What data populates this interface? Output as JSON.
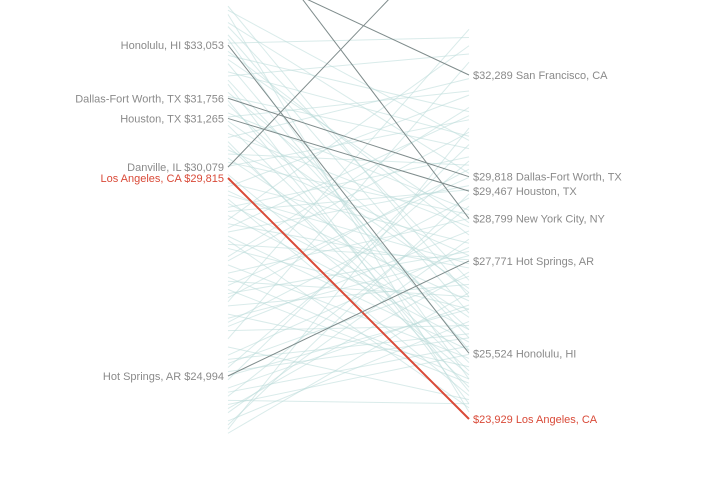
{
  "chart_data": {
    "type": "slope",
    "colors": {
      "highlight": "#d94a38",
      "labeled_line": "#7f8c8c",
      "background_line": "#b9dad8",
      "label_text": "#8a8a8a"
    },
    "left_axis": {
      "domain": [
        23000,
        34000
      ]
    },
    "right_axis": {
      "domain": [
        23000,
        34000
      ]
    },
    "labeled_series": [
      {
        "name": "Honolulu, HI",
        "left_value": 33053,
        "left_text": "Honolulu, HI  $33,053",
        "right_value": 25524,
        "right_text": "$25,524 Honolulu, HI",
        "highlight": false
      },
      {
        "name": "Dallas-Fort Worth, TX",
        "left_value": 31756,
        "left_text": "Dallas-Fort Worth, TX  $31,756",
        "right_value": 29818,
        "right_text": "$29,818 Dallas-Fort Worth, TX",
        "highlight": false
      },
      {
        "name": "Houston, TX",
        "left_value": 31265,
        "left_text": "Houston, TX  $31,265",
        "right_value": 29467,
        "right_text": "$29,467 Houston, TX",
        "highlight": false
      },
      {
        "name": "Danville, IL",
        "left_value": 30079,
        "left_text": "Danville, IL  $30,079",
        "highlight": false
      },
      {
        "name": "Los Angeles, CA",
        "left_value": 29815,
        "left_text": "Los Angeles, CA  $29,815",
        "right_value": 23929,
        "right_text": "$23,929 Los Angeles, CA",
        "highlight": true
      },
      {
        "name": "Hot Springs, AR",
        "left_value": 24994,
        "left_text": "Hot Springs, AR  $24,994",
        "right_value": 27771,
        "right_text": "$27,771 Hot Springs, AR",
        "highlight": false
      },
      {
        "name": "San Francisco, CA",
        "right_value": 32289,
        "right_text": "$32,289 San Francisco, CA",
        "highlight": false
      },
      {
        "name": "New York City, NY",
        "right_value": 28799,
        "right_text": "$28,799 New York City, NY",
        "highlight": false
      }
    ],
    "background_lines": [
      [
        33800,
        24100
      ],
      [
        33500,
        27300
      ],
      [
        33200,
        24900
      ],
      [
        32900,
        28400
      ],
      [
        32600,
        25600
      ],
      [
        32400,
        30800
      ],
      [
        32100,
        24300
      ],
      [
        31900,
        27000
      ],
      [
        31600,
        26100
      ],
      [
        31400,
        29000
      ],
      [
        31100,
        25300
      ],
      [
        30900,
        28600
      ],
      [
        30700,
        24700
      ],
      [
        30500,
        27900
      ],
      [
        30300,
        26400
      ],
      [
        30100,
        31200
      ],
      [
        29900,
        25000
      ],
      [
        29700,
        28200
      ],
      [
        29500,
        26800
      ],
      [
        29300,
        24500
      ],
      [
        29100,
        30300
      ],
      [
        28900,
        25800
      ],
      [
        28700,
        27600
      ],
      [
        28500,
        29600
      ],
      [
        28300,
        24200
      ],
      [
        28100,
        26600
      ],
      [
        27900,
        31500
      ],
      [
        27700,
        25400
      ],
      [
        27500,
        28800
      ],
      [
        27300,
        26900
      ],
      [
        27100,
        24800
      ],
      [
        26900,
        30000
      ],
      [
        26700,
        27200
      ],
      [
        26500,
        25200
      ],
      [
        26300,
        29300
      ],
      [
        26100,
        26200
      ],
      [
        25900,
        32600
      ],
      [
        25700,
        24400
      ],
      [
        25500,
        28100
      ],
      [
        25300,
        27400
      ],
      [
        25100,
        25900
      ],
      [
        24900,
        30600
      ],
      [
        24700,
        26700
      ],
      [
        24500,
        29100
      ],
      [
        24300,
        25500
      ],
      [
        24100,
        28300
      ],
      [
        23900,
        26300
      ],
      [
        23700,
        31000
      ],
      [
        33600,
        29900
      ],
      [
        32800,
        31400
      ],
      [
        31800,
        30500
      ],
      [
        30800,
        32200
      ],
      [
        29600,
        31800
      ],
      [
        28800,
        33000
      ],
      [
        27800,
        30900
      ],
      [
        26800,
        33400
      ],
      [
        33300,
        26500
      ],
      [
        32200,
        25900
      ],
      [
        31200,
        27100
      ],
      [
        30200,
        28900
      ],
      [
        29200,
        26100
      ],
      [
        28200,
        27800
      ],
      [
        27200,
        29800
      ],
      [
        26200,
        28500
      ],
      [
        25200,
        30200
      ],
      [
        24200,
        27500
      ],
      [
        23800,
        29400
      ],
      [
        33900,
        30700
      ],
      [
        32700,
        28700
      ],
      [
        31700,
        24600
      ],
      [
        30600,
        25100
      ],
      [
        29400,
        27700
      ],
      [
        28400,
        25600
      ],
      [
        27400,
        24900
      ],
      [
        26400,
        27900
      ],
      [
        25400,
        26000
      ],
      [
        24400,
        24300
      ],
      [
        23600,
        27000
      ],
      [
        33100,
        33200
      ],
      [
        31300,
        31900
      ],
      [
        29000,
        29500
      ],
      [
        27000,
        28000
      ],
      [
        25000,
        26600
      ],
      [
        24600,
        25700
      ],
      [
        34000,
        26900
      ],
      [
        32300,
        32800
      ],
      [
        30400,
        30100
      ],
      [
        28600,
        31300
      ]
    ]
  }
}
